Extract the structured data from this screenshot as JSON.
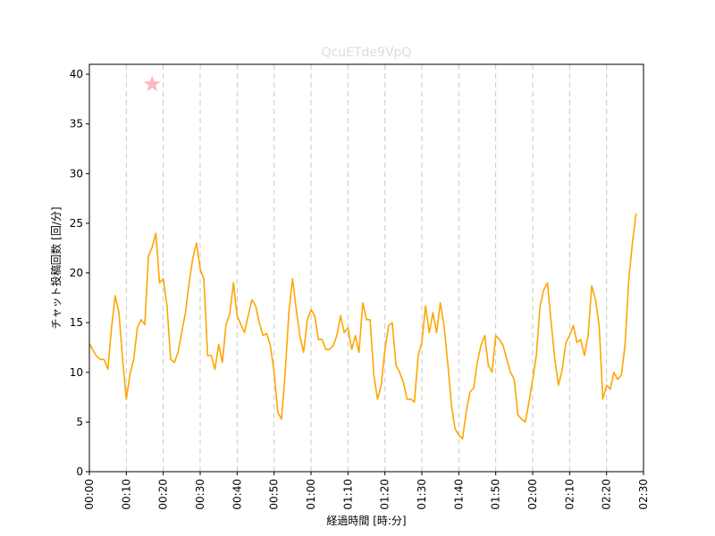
{
  "chart_data": {
    "type": "line",
    "title": "QcuETde9VpQ",
    "title_color": "#dddddd",
    "xlabel": "経過時間 [時:分]",
    "ylabel": "チャット投稿回数 [回/分]",
    "xlim": [
      0,
      150
    ],
    "ylim": [
      0,
      41
    ],
    "grid": "x-dashed",
    "line_color": "#ffa500",
    "marker_color": "#ffb6c1",
    "x_ticks": [
      {
        "value": 0,
        "label": "00:00"
      },
      {
        "value": 10,
        "label": "00:10"
      },
      {
        "value": 20,
        "label": "00:20"
      },
      {
        "value": 30,
        "label": "00:30"
      },
      {
        "value": 40,
        "label": "00:40"
      },
      {
        "value": 50,
        "label": "00:50"
      },
      {
        "value": 60,
        "label": "01:00"
      },
      {
        "value": 70,
        "label": "01:10"
      },
      {
        "value": 80,
        "label": "01:20"
      },
      {
        "value": 90,
        "label": "01:30"
      },
      {
        "value": 100,
        "label": "01:40"
      },
      {
        "value": 110,
        "label": "01:50"
      },
      {
        "value": 120,
        "label": "02:00"
      },
      {
        "value": 130,
        "label": "02:10"
      },
      {
        "value": 140,
        "label": "02:20"
      },
      {
        "value": 150,
        "label": "02:30"
      }
    ],
    "y_ticks": [
      {
        "value": 0,
        "label": "0"
      },
      {
        "value": 5,
        "label": "5"
      },
      {
        "value": 10,
        "label": "10"
      },
      {
        "value": 15,
        "label": "15"
      },
      {
        "value": 20,
        "label": "20"
      },
      {
        "value": 25,
        "label": "25"
      },
      {
        "value": 30,
        "label": "30"
      },
      {
        "value": 35,
        "label": "35"
      },
      {
        "value": 40,
        "label": "40"
      }
    ],
    "peak_marker": {
      "x": 17,
      "y": 39
    },
    "series": [
      {
        "x": [
          0,
          1,
          2,
          3,
          4,
          5,
          6,
          7,
          8,
          9,
          10,
          11,
          12,
          13,
          14,
          15,
          16,
          17,
          18,
          19,
          20,
          21,
          22,
          23,
          24,
          25,
          26,
          27,
          28,
          29,
          30,
          31,
          32,
          33,
          34,
          35,
          36,
          37,
          38,
          39,
          40,
          41,
          42,
          43,
          44,
          45,
          46,
          47,
          48,
          49,
          50,
          51,
          52,
          53,
          54,
          55,
          56,
          57,
          58,
          59,
          60,
          61,
          62,
          63,
          64,
          65,
          66,
          67,
          68,
          69,
          70,
          71,
          72,
          73,
          74,
          75,
          76,
          77,
          78,
          79,
          80,
          81,
          82,
          83,
          84,
          85,
          86,
          87,
          88,
          89,
          90,
          91,
          92,
          93,
          94,
          95,
          96,
          97,
          98,
          99,
          100,
          101,
          102,
          103,
          104,
          105,
          106,
          107,
          108,
          109,
          110,
          111,
          112,
          113,
          114,
          115,
          116,
          117,
          118,
          119,
          120,
          121,
          122,
          123,
          124,
          125,
          126,
          127,
          128,
          129,
          130,
          131,
          132,
          133,
          134,
          135,
          136,
          137,
          138,
          139,
          140,
          141,
          142,
          143,
          144,
          145,
          146,
          147,
          148
        ],
        "values": [
          12.9,
          12.2,
          11.6,
          11.3,
          11.3,
          10.3,
          14.5,
          17.7,
          16.0,
          11.3,
          7.3,
          9.8,
          11.3,
          14.5,
          15.3,
          14.8,
          21.7,
          22.6,
          24.0,
          19.0,
          19.4,
          16.8,
          11.3,
          11.0,
          12.0,
          14.0,
          16.0,
          19.0,
          21.5,
          23.0,
          20.4,
          19.4,
          11.7,
          11.7,
          10.3,
          12.8,
          11.0,
          14.8,
          15.9,
          19.0,
          15.7,
          14.8,
          14.0,
          15.7,
          17.3,
          16.7,
          15.0,
          13.7,
          13.9,
          12.7,
          10.0,
          6.0,
          5.3,
          10.0,
          16.0,
          19.4,
          16.3,
          13.6,
          12.0,
          15.3,
          16.3,
          15.7,
          13.3,
          13.3,
          12.3,
          12.3,
          12.7,
          13.7,
          15.7,
          14.0,
          14.5,
          12.3,
          13.7,
          12.0,
          17.0,
          15.3,
          15.3,
          9.7,
          7.3,
          8.7,
          12.3,
          14.7,
          15.0,
          10.7,
          10.0,
          9.0,
          7.3,
          7.3,
          7.0,
          11.7,
          13.0,
          16.7,
          14.0,
          16.0,
          14.0,
          17.0,
          14.7,
          11.0,
          6.7,
          4.3,
          3.7,
          3.3,
          6.0,
          8.0,
          8.4,
          11.0,
          12.7,
          13.7,
          10.7,
          10.0,
          13.7,
          13.3,
          12.7,
          11.3,
          10.0,
          9.3,
          5.7,
          5.3,
          5.0,
          7.0,
          9.3,
          11.7,
          16.7,
          18.3,
          19.0,
          15.0,
          11.3,
          8.7,
          10.3,
          13.0,
          13.7,
          14.7,
          13.0,
          13.3,
          11.7,
          13.7,
          18.7,
          17.3,
          14.7,
          7.3,
          8.7,
          8.3,
          10.0,
          9.3,
          9.7,
          12.7,
          19.3,
          23.0,
          26.0
        ]
      }
    ]
  }
}
